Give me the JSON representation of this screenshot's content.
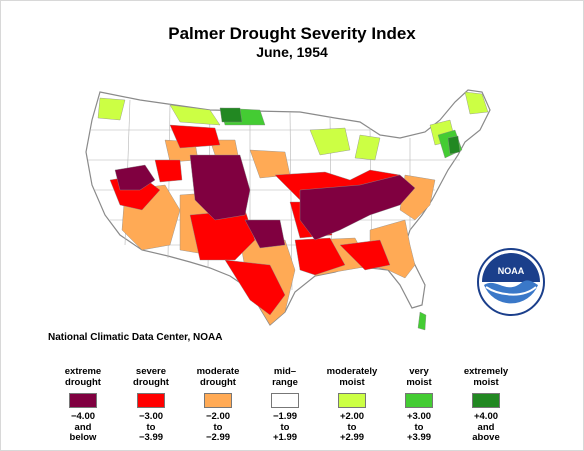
{
  "title": "Palmer Drought Severity Index",
  "subtitle": "June, 1954",
  "credit": "National Climatic Data Center, NOAA",
  "logo_text": "NOAA",
  "legend": [
    {
      "label": [
        "extreme",
        "drought"
      ],
      "color": "#800040",
      "range": [
        "−4.00",
        "and",
        "below"
      ]
    },
    {
      "label": [
        "severe",
        "drought"
      ],
      "color": "#ff0000",
      "range": [
        "−3.00",
        "to",
        "−3.99"
      ]
    },
    {
      "label": [
        "moderate",
        "drought"
      ],
      "color": "#ffaa55",
      "range": [
        "−2.00",
        "to",
        "−2.99"
      ]
    },
    {
      "label": [
        "mid–",
        "range"
      ],
      "color": "#ffffff",
      "range": [
        "−1.99",
        "to",
        "+1.99"
      ]
    },
    {
      "label": [
        "moderately",
        "moist"
      ],
      "color": "#ccff44",
      "range": [
        "+2.00",
        "to",
        "+2.99"
      ]
    },
    {
      "label": [
        "very",
        "moist"
      ],
      "color": "#44cc33",
      "range": [
        "+3.00",
        "to",
        "+3.99"
      ]
    },
    {
      "label": [
        "extremely",
        "moist"
      ],
      "color": "#228822",
      "range": [
        "+4.00",
        "and",
        "above"
      ]
    }
  ]
}
